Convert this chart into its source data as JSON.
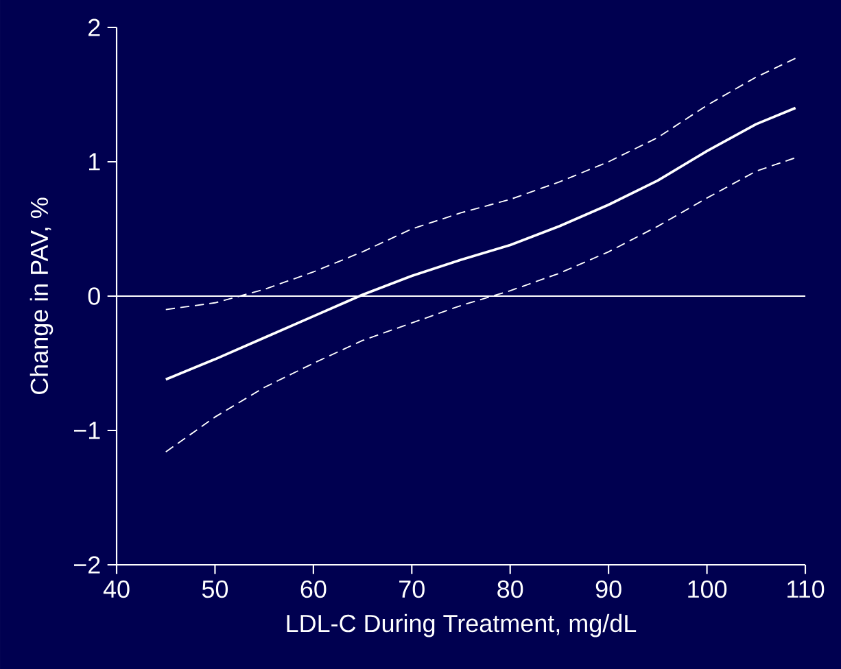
{
  "chart_data": {
    "type": "line",
    "xlabel": "LDL-C During Treatment, mg/dL",
    "ylabel": "Change in PAV, %",
    "xlim": [
      40,
      110
    ],
    "ylim": [
      -2,
      2
    ],
    "xticks": [
      40,
      50,
      60,
      70,
      80,
      90,
      100,
      110
    ],
    "yticks": [
      {
        "value": -2,
        "label": "−2"
      },
      {
        "value": -1,
        "label": "−1"
      },
      0,
      1,
      2
    ],
    "grid": false,
    "marker": "none",
    "ref_lines": [
      {
        "axis": "y",
        "value": 0,
        "color": "#ffffff"
      }
    ],
    "series": [
      {
        "color": "#ffffff",
        "line_style": "solid",
        "x": [
          45,
          50,
          55,
          60,
          65,
          70,
          75,
          80,
          85,
          90,
          95,
          100,
          105,
          109
        ],
        "values": [
          -0.62,
          -0.47,
          -0.31,
          -0.15,
          0.01,
          0.15,
          0.27,
          0.38,
          0.52,
          0.68,
          0.86,
          1.08,
          1.28,
          1.4
        ]
      },
      {
        "color": "#ffffff",
        "line_style": "dashed",
        "x": [
          45,
          50,
          55,
          60,
          65,
          70,
          75,
          80,
          85,
          90,
          95,
          100,
          105,
          109
        ],
        "values": [
          -0.1,
          -0.05,
          0.05,
          0.18,
          0.33,
          0.5,
          0.62,
          0.72,
          0.85,
          1.0,
          1.18,
          1.42,
          1.63,
          1.77
        ]
      },
      {
        "color": "#ffffff",
        "line_style": "dashed",
        "x": [
          45,
          50,
          55,
          60,
          65,
          70,
          75,
          80,
          85,
          90,
          95,
          100,
          105,
          109
        ],
        "values": [
          -1.16,
          -0.9,
          -0.68,
          -0.5,
          -0.33,
          -0.2,
          -0.07,
          0.04,
          0.17,
          0.33,
          0.52,
          0.73,
          0.93,
          1.03
        ]
      }
    ]
  }
}
